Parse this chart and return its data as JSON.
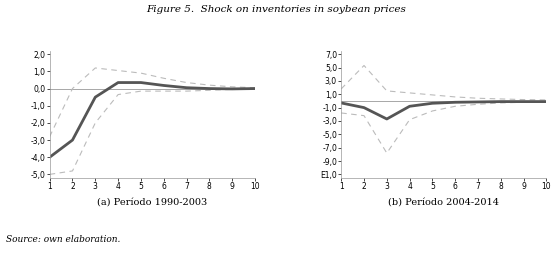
{
  "title": "Figure 5.  Shock on inventories in soybean prices",
  "source_text": "Source: own elaboration.",
  "subplot_labels": [
    "(a) Período 1990-2003",
    "(b) Período 2004-2014"
  ],
  "x": [
    1,
    2,
    3,
    4,
    5,
    6,
    7,
    8,
    9,
    10
  ],
  "left_main": [
    -4.0,
    -3.0,
    -0.5,
    0.35,
    0.35,
    0.18,
    0.05,
    0.0,
    -0.02,
    0.0
  ],
  "left_upper": [
    -2.8,
    0.0,
    1.2,
    1.05,
    0.9,
    0.6,
    0.35,
    0.2,
    0.1,
    0.05
  ],
  "left_lower": [
    -5.0,
    -4.8,
    -2.0,
    -0.35,
    -0.15,
    -0.15,
    -0.15,
    -0.1,
    -0.05,
    -0.02
  ],
  "right_main": [
    -0.3,
    -1.0,
    -2.7,
    -0.8,
    -0.35,
    -0.2,
    -0.15,
    -0.1,
    -0.1,
    -0.1
  ],
  "right_upper": [
    1.8,
    5.3,
    1.5,
    1.2,
    0.9,
    0.6,
    0.4,
    0.3,
    0.2,
    0.15
  ],
  "right_lower": [
    -1.8,
    -2.2,
    -7.8,
    -2.8,
    -1.5,
    -0.8,
    -0.5,
    -0.3,
    -0.2,
    -0.15
  ],
  "left_ylim": [
    -5.2,
    2.2
  ],
  "left_yticks": [
    -5.0,
    -4.0,
    -3.0,
    -2.0,
    -1.0,
    0.0,
    1.0,
    2.0
  ],
  "left_ytick_labels": [
    "-5,0",
    "-4,0",
    "-3,0",
    "-2,0",
    "-1,0",
    "0,0",
    "1,0",
    "2,0"
  ],
  "right_ylim": [
    -11.5,
    7.5
  ],
  "right_yticks": [
    -11.0,
    -9.0,
    -7.0,
    "-5.0",
    "-3.0",
    -1.0,
    1.0,
    3.0,
    5.0,
    7.0
  ],
  "right_ytick_labels": [
    "Е1,0",
    "-9,0",
    "-7,0",
    "-5,0",
    "-3,0",
    "-1,0",
    "1,0",
    "3,0",
    "5,0",
    "7,0"
  ],
  "main_color": "#555555",
  "ci_color": "#bbbbbb",
  "zero_line_color": "#999999",
  "bg_color": "#ffffff",
  "main_lw": 2.0,
  "ci_lw": 0.8
}
